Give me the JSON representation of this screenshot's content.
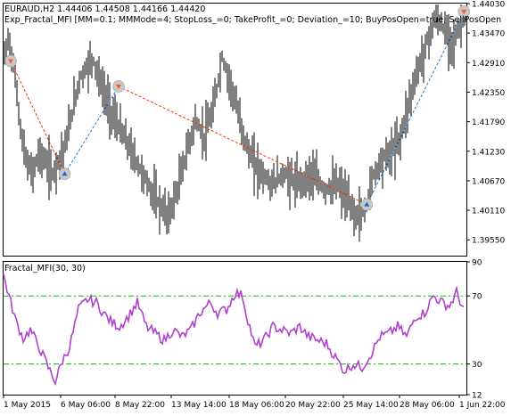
{
  "main_chart": {
    "symbol_line": "EURAUD,H2  1.44406 1.44508 1.44166 1.44420",
    "ea_line": "Exp_Fractal_MFI [MM=0.1; MMMode=4; StopLoss_=0; TakeProfit_=0; Deviation_=10; BuyPosOpen=true; SellPosOpen",
    "price_ticks": [
      "1.44030",
      "1.43470",
      "1.42910",
      "1.42350",
      "1.41790",
      "1.41230",
      "1.40670",
      "1.40110",
      "1.39550"
    ],
    "price_range": [
      1.3925,
      1.4403
    ],
    "candle_color": "#000000",
    "sell_line_color": "#ff3300",
    "buy_line_color": "#1e78d8",
    "sell_marker_color": "#ff5a1e",
    "buy_marker_color": "#1e64c8",
    "trade_path": [
      {
        "x": 0,
        "price": 1.4294,
        "kind": "sell"
      },
      {
        "x": 5,
        "price": 1.408,
        "kind": "buy"
      },
      {
        "x": 10,
        "price": 1.4246,
        "kind": "sell"
      },
      {
        "x": 33,
        "price": 1.4022,
        "kind": "buy"
      },
      {
        "x": 42,
        "price": 1.4388,
        "kind": "sell"
      }
    ]
  },
  "indicator": {
    "label": "Fractal_MFI(30, 30)",
    "ticks": [
      "90",
      "70",
      "30",
      "12"
    ],
    "range": [
      12,
      90
    ],
    "levels": [
      70,
      30
    ],
    "level_color": "#00bb00",
    "line_color": "#b040d0"
  },
  "time_axis": {
    "labels": [
      "1 May 2015",
      "6 May 06:00",
      "8 May 22:00",
      "13 May 14:00",
      "18 May 06:00",
      "20 May 22:00",
      "25 May 14:00",
      "28 May 06:00",
      "1 Jun 22:00"
    ]
  }
}
